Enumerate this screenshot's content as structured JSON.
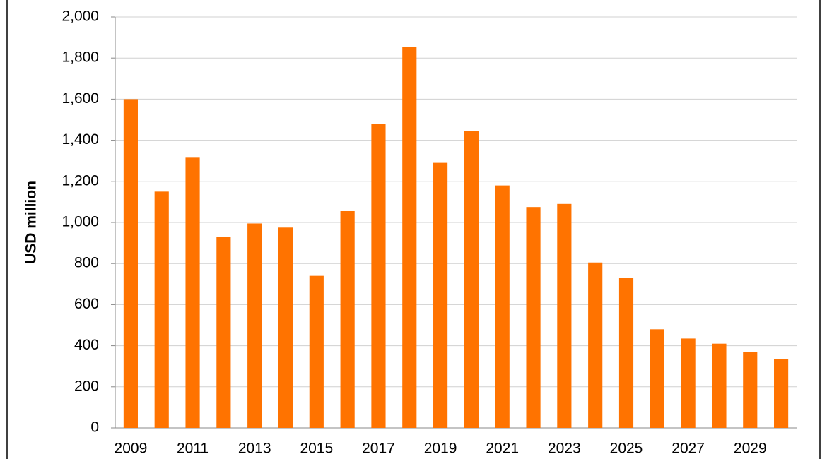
{
  "chart_data": {
    "type": "bar",
    "y_label": "USD million",
    "categories": [
      "2009",
      null,
      "2011",
      null,
      "2013",
      null,
      "2015",
      null,
      "2017",
      null,
      "2019",
      null,
      "2021",
      null,
      "2023",
      null,
      "2025",
      null,
      "2027",
      null,
      "2029",
      null
    ],
    "values": [
      1600,
      1150,
      1315,
      930,
      995,
      975,
      740,
      1055,
      1480,
      1855,
      1290,
      1445,
      1180,
      1075,
      1090,
      805,
      730,
      480,
      435,
      410,
      370,
      335
    ],
    "color": "#ff7300",
    "ylim": [
      0,
      2000
    ],
    "yticks": [
      0,
      200,
      400,
      600,
      800,
      {
        "value": 1000,
        "label": "1,000"
      },
      {
        "value": 1200,
        "label": "1,200"
      },
      {
        "value": 1400,
        "label": "1,400"
      },
      {
        "value": 1600,
        "label": "1,600"
      },
      {
        "value": 1800,
        "label": "1,800"
      },
      {
        "value": 2000,
        "label": "2,000"
      }
    ],
    "grid": true
  }
}
